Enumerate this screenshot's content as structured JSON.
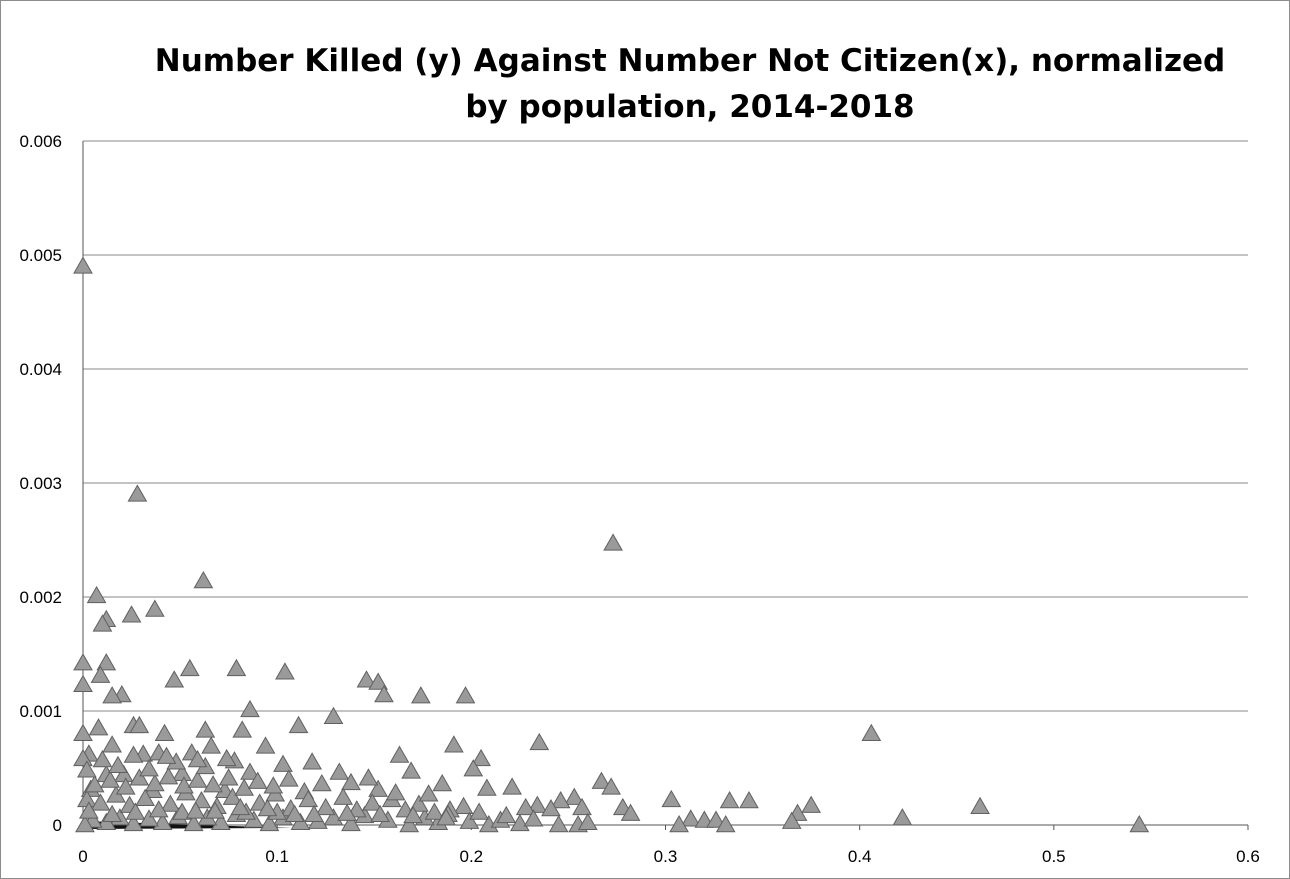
{
  "chart_data": {
    "type": "scatter",
    "title": "Number Killed (y) Against Number Not Citizen(x), normalized by population, 2014-2018",
    "xlabel": "",
    "ylabel": "",
    "xlim": [
      0,
      0.6
    ],
    "ylim": [
      0,
      0.006
    ],
    "x_ticks": [
      "0",
      "0.1",
      "0.2",
      "0.3",
      "0.4",
      "0.5",
      "0.6"
    ],
    "y_ticks": [
      "0",
      "0.001",
      "0.002",
      "0.003",
      "0.004",
      "0.005",
      "0.006"
    ],
    "grid": "horizontal",
    "legend": "none",
    "marker": "triangle",
    "marker_color": "#9a9a9a",
    "series": [
      {
        "points": [
          [
            0.0,
            0.0049
          ],
          [
            0.028,
            0.0029
          ],
          [
            0.273,
            0.00247
          ],
          [
            0.062,
            0.00214
          ],
          [
            0.007,
            0.00201
          ],
          [
            0.037,
            0.00189
          ],
          [
            0.025,
            0.00184
          ],
          [
            0.012,
            0.0018
          ],
          [
            0.01,
            0.00176
          ],
          [
            0.0,
            0.00142
          ],
          [
            0.012,
            0.00142
          ],
          [
            0.0,
            0.00123
          ],
          [
            0.055,
            0.00137
          ],
          [
            0.079,
            0.00137
          ],
          [
            0.104,
            0.00134
          ],
          [
            0.009,
            0.00131
          ],
          [
            0.047,
            0.00127
          ],
          [
            0.146,
            0.00127
          ],
          [
            0.152,
            0.00125
          ],
          [
            0.155,
            0.00114
          ],
          [
            0.174,
            0.00113
          ],
          [
            0.197,
            0.00113
          ],
          [
            0.02,
            0.00114
          ],
          [
            0.015,
            0.00113
          ],
          [
            0.086,
            0.00101
          ],
          [
            0.129,
            0.00095
          ],
          [
            0.026,
            0.00087
          ],
          [
            0.029,
            0.00087
          ],
          [
            0.008,
            0.00085
          ],
          [
            0.111,
            0.00087
          ],
          [
            0.0,
            0.0008
          ],
          [
            0.042,
            0.0008
          ],
          [
            0.063,
            0.00083
          ],
          [
            0.082,
            0.00083
          ],
          [
            0.406,
            0.0008
          ],
          [
            0.235,
            0.00072
          ],
          [
            0.191,
            0.0007
          ],
          [
            0.094,
            0.00069
          ],
          [
            0.066,
            0.00069
          ],
          [
            0.015,
            0.0007
          ],
          [
            0.003,
            0.00062
          ],
          [
            0.056,
            0.00063
          ],
          [
            0.031,
            0.00062
          ],
          [
            0.039,
            0.00063
          ],
          [
            0.163,
            0.00061
          ],
          [
            0.205,
            0.00058
          ],
          [
            0.0,
            0.00058
          ],
          [
            0.118,
            0.00055
          ],
          [
            0.103,
            0.00053
          ],
          [
            0.201,
            0.00049
          ],
          [
            0.169,
            0.00047
          ],
          [
            0.132,
            0.00046
          ],
          [
            0.086,
            0.00046
          ],
          [
            0.051,
            0.00045
          ],
          [
            0.012,
            0.00044
          ],
          [
            0.021,
            0.00044
          ],
          [
            0.267,
            0.00038
          ],
          [
            0.272,
            0.00033
          ],
          [
            0.221,
            0.00033
          ],
          [
            0.208,
            0.00032
          ],
          [
            0.185,
            0.00036
          ],
          [
            0.152,
            0.00031
          ],
          [
            0.138,
            0.00037
          ],
          [
            0.004,
            0.00031
          ],
          [
            0.036,
            0.0003
          ],
          [
            0.073,
            0.0003
          ],
          [
            0.114,
            0.00029
          ],
          [
            0.253,
            0.00024
          ],
          [
            0.246,
            0.00021
          ],
          [
            0.303,
            0.00022
          ],
          [
            0.333,
            0.00021
          ],
          [
            0.343,
            0.00021
          ],
          [
            0.462,
            0.00016
          ],
          [
            0.375,
            0.00017
          ],
          [
            0.234,
            0.00017
          ],
          [
            0.228,
            0.00015
          ],
          [
            0.278,
            0.00015
          ],
          [
            0.257,
            0.00015
          ],
          [
            0.196,
            0.00016
          ],
          [
            0.241,
            0.00014
          ],
          [
            0.282,
            0.0001
          ],
          [
            0.368,
            0.0001
          ],
          [
            0.422,
            6e-05
          ],
          [
            0.313,
            5e-05
          ],
          [
            0.32,
            4e-05
          ],
          [
            0.326,
            4e-05
          ],
          [
            0.365,
            3e-05
          ],
          [
            0.307,
            0.0
          ],
          [
            0.331,
            0.0
          ],
          [
            0.544,
            0.0
          ],
          [
            0.255,
            0.0
          ],
          [
            0.26,
            2e-05
          ],
          [
            0.245,
            0.0
          ],
          [
            0.225,
            1e-05
          ],
          [
            0.209,
            0.0
          ],
          [
            0.215,
            4e-05
          ],
          [
            0.199,
            3e-05
          ],
          [
            0.183,
            2e-05
          ],
          [
            0.176,
            6e-05
          ],
          [
            0.168,
            0.0
          ],
          [
            0.157,
            4e-05
          ],
          [
            0.145,
            8e-05
          ],
          [
            0.138,
            1e-05
          ],
          [
            0.129,
            6e-05
          ],
          [
            0.121,
            3e-05
          ],
          [
            0.112,
            2e-05
          ],
          [
            0.103,
            6e-05
          ],
          [
            0.096,
            1e-05
          ],
          [
            0.088,
            4e-05
          ],
          [
            0.079,
            9e-05
          ],
          [
            0.071,
            2e-05
          ],
          [
            0.064,
            6e-05
          ],
          [
            0.057,
            1e-05
          ],
          [
            0.049,
            7e-05
          ],
          [
            0.041,
            2e-05
          ],
          [
            0.034,
            5e-05
          ],
          [
            0.026,
            1e-05
          ],
          [
            0.019,
            6e-05
          ],
          [
            0.012,
            2e-05
          ],
          [
            0.005,
            4e-05
          ],
          [
            0.001,
            0.0
          ],
          [
            0.002,
            0.00022
          ],
          [
            0.009,
            0.00019
          ],
          [
            0.017,
            0.00026
          ],
          [
            0.024,
            0.00017
          ],
          [
            0.032,
            0.00023
          ],
          [
            0.045,
            0.00018
          ],
          [
            0.053,
            0.00028
          ],
          [
            0.061,
            0.00021
          ],
          [
            0.069,
            0.00016
          ],
          [
            0.077,
            0.00024
          ],
          [
            0.091,
            0.00019
          ],
          [
            0.099,
            0.00027
          ],
          [
            0.107,
            0.00014
          ],
          [
            0.116,
            0.00022
          ],
          [
            0.125,
            0.00015
          ],
          [
            0.134,
            0.00024
          ],
          [
            0.141,
            0.00013
          ],
          [
            0.149,
            0.00019
          ],
          [
            0.159,
            0.00022
          ],
          [
            0.166,
            0.00013
          ],
          [
            0.173,
            0.00018
          ],
          [
            0.181,
            0.00011
          ],
          [
            0.189,
            0.00013
          ],
          [
            0.006,
            0.00035
          ],
          [
            0.014,
            0.00039
          ],
          [
            0.022,
            0.00033
          ],
          [
            0.029,
            0.00041
          ],
          [
            0.037,
            0.00036
          ],
          [
            0.044,
            0.00042
          ],
          [
            0.052,
            0.00034
          ],
          [
            0.059,
            0.00039
          ],
          [
            0.067,
            0.00035
          ],
          [
            0.075,
            0.00041
          ],
          [
            0.083,
            0.00032
          ],
          [
            0.09,
            0.00038
          ],
          [
            0.098,
            0.00034
          ],
          [
            0.106,
            0.0004
          ],
          [
            0.123,
            0.00036
          ],
          [
            0.147,
            0.00041
          ],
          [
            0.161,
            0.00028
          ],
          [
            0.178,
            0.00027
          ],
          [
            0.002,
            0.00048
          ],
          [
            0.018,
            0.00052
          ],
          [
            0.034,
            0.00049
          ],
          [
            0.048,
            0.00055
          ],
          [
            0.063,
            0.00051
          ],
          [
            0.078,
            0.00056
          ],
          [
            0.01,
            0.00057
          ],
          [
            0.026,
            0.00061
          ],
          [
            0.043,
            0.0006
          ],
          [
            0.059,
            0.00057
          ],
          [
            0.074,
            0.00058
          ],
          [
            0.003,
            0.00012
          ],
          [
            0.015,
            9e-05
          ],
          [
            0.027,
            0.00011
          ],
          [
            0.039,
            0.00013
          ],
          [
            0.051,
            0.00011
          ],
          [
            0.068,
            0.00012
          ],
          [
            0.084,
            0.00011
          ],
          [
            0.1,
            0.00011
          ],
          [
            0.119,
            9e-05
          ],
          [
            0.136,
            0.0001
          ],
          [
            0.153,
            9e-05
          ],
          [
            0.17,
            8e-05
          ],
          [
            0.188,
            9e-05
          ],
          [
            0.204,
            0.00011
          ],
          [
            0.218,
            8e-05
          ],
          [
            0.232,
            5e-05
          ],
          [
            0.187,
            6e-05
          ],
          [
            0.109,
            9e-05
          ],
          [
            0.095,
            0.00014
          ],
          [
            0.081,
            0.00015
          ],
          [
            0.058,
            0.00012
          ]
        ]
      }
    ]
  }
}
